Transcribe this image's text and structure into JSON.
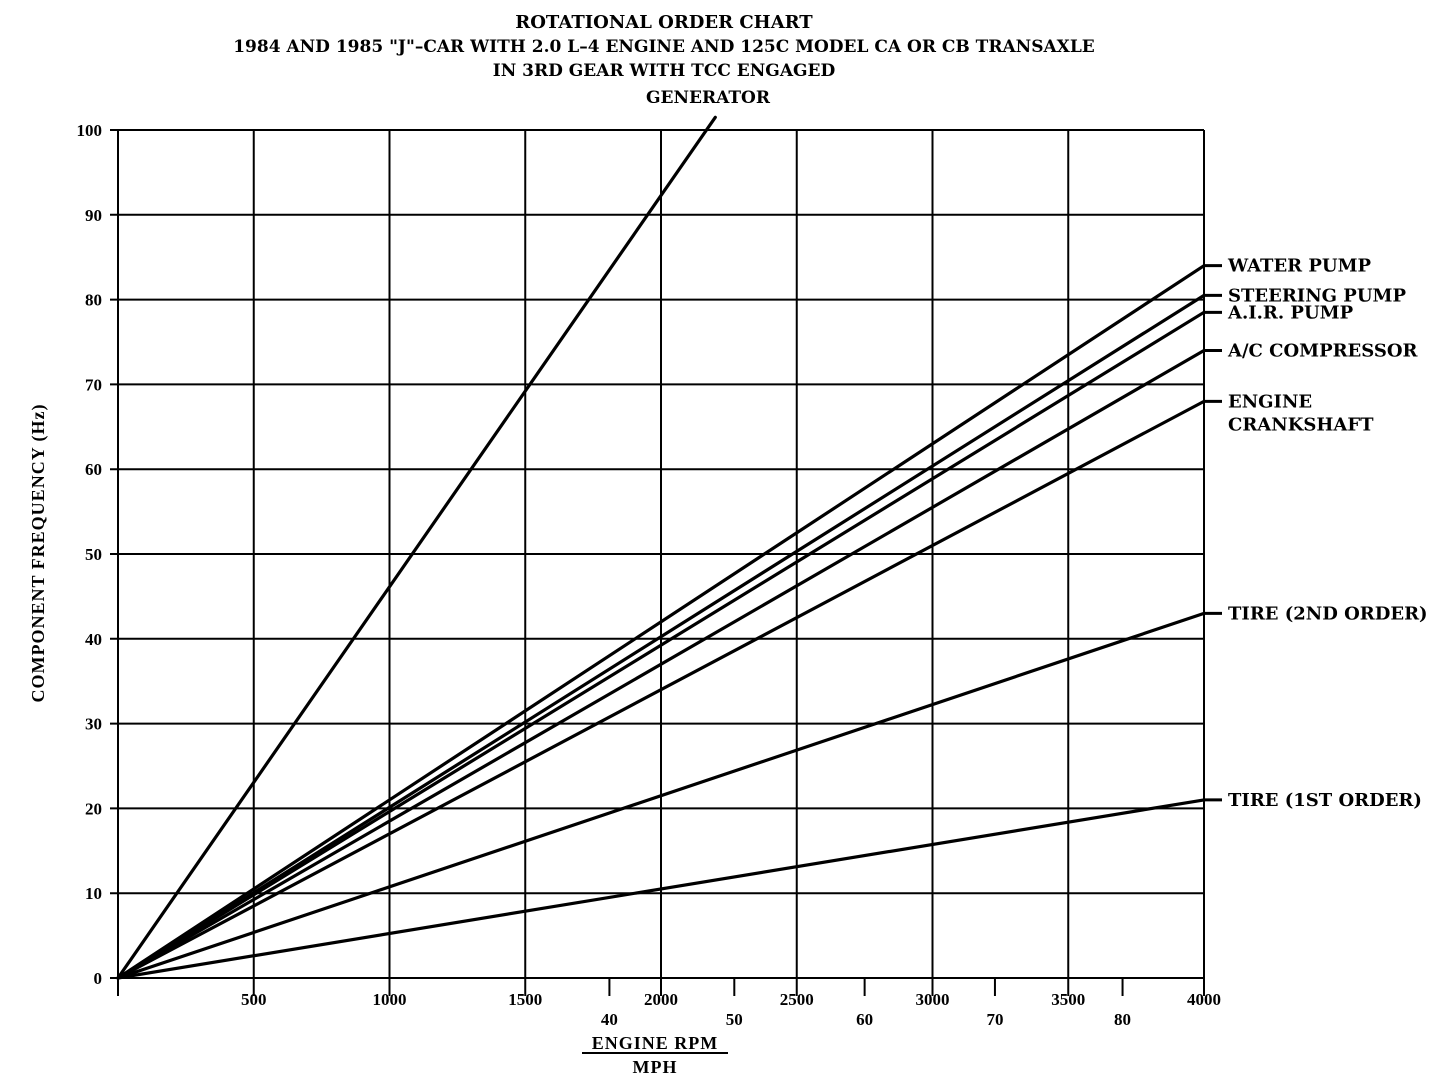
{
  "chart_data": {
    "type": "line",
    "title": "ROTATIONAL ORDER CHART",
    "subtitle_lines": [
      "1984 AND 1985 \"J\"–CAR WITH 2.0 L–4 ENGINE AND 125C MODEL CA OR CB TRANSAXLE",
      "IN 3RD GEAR WITH TCC ENGAGED"
    ],
    "ylabel": "COMPONENT FREQUENCY (Hz)",
    "xlabel": "ENGINE RPM",
    "xlabel2": "MPH",
    "xlim": [
      0,
      4000
    ],
    "ylim": [
      0,
      100
    ],
    "grid": true,
    "x_ticks": [
      500,
      1000,
      1500,
      2000,
      2500,
      3000,
      3500,
      4000
    ],
    "x_tick_labels": [
      "500",
      "1000",
      "1500",
      "2000",
      "2500",
      "3000",
      "3500",
      "4000"
    ],
    "y_ticks": [
      0,
      10,
      20,
      30,
      40,
      50,
      60,
      70,
      80,
      90,
      100
    ],
    "y_tick_labels": [
      "0",
      "10",
      "20",
      "30",
      "40",
      "50",
      "60",
      "70",
      "80",
      "90",
      "100"
    ],
    "mph_ticks": [
      {
        "rpm": 1810,
        "label": "40"
      },
      {
        "rpm": 2270,
        "label": "50"
      },
      {
        "rpm": 2750,
        "label": "60"
      },
      {
        "rpm": 3230,
        "label": "70"
      },
      {
        "rpm": 3700,
        "label": "80"
      }
    ],
    "series": [
      {
        "name": "GENERATOR",
        "x": [
          0,
          2200
        ],
        "y": [
          0,
          101.5
        ]
      },
      {
        "name": "WATER PUMP",
        "x": [
          0,
          4000
        ],
        "y": [
          0,
          84
        ]
      },
      {
        "name": "STEERING PUMP",
        "x": [
          0,
          4000
        ],
        "y": [
          0,
          80.5
        ]
      },
      {
        "name": "A.I.R. PUMP",
        "x": [
          0,
          4000
        ],
        "y": [
          0,
          78.5
        ]
      },
      {
        "name": "A/C COMPRESSOR",
        "x": [
          0,
          4000
        ],
        "y": [
          0,
          74
        ]
      },
      {
        "name": "ENGINE CRANKSHAFT",
        "x": [
          0,
          4000
        ],
        "y": [
          0,
          68
        ]
      },
      {
        "name": "TIRE (2ND ORDER)",
        "x": [
          0,
          4000
        ],
        "y": [
          0,
          43
        ]
      },
      {
        "name": "TIRE (1ST ORDER)",
        "x": [
          0,
          4000
        ],
        "y": [
          0,
          21
        ]
      }
    ],
    "legend": [
      {
        "series": "WATER PUMP",
        "lines": [
          "WATER PUMP"
        ]
      },
      {
        "series": "STEERING PUMP",
        "lines": [
          "STEERING PUMP"
        ]
      },
      {
        "series": "A.I.R. PUMP",
        "lines": [
          "A.I.R. PUMP"
        ]
      },
      {
        "series": "A/C COMPRESSOR",
        "lines": [
          "A/C COMPRESSOR"
        ]
      },
      {
        "series": "ENGINE CRANKSHAFT",
        "lines": [
          "ENGINE",
          "CRANKSHAFT"
        ]
      },
      {
        "series": "TIRE (2ND ORDER)",
        "lines": [
          "TIRE (2ND ORDER)"
        ]
      },
      {
        "series": "TIRE (1ST ORDER)",
        "lines": [
          "TIRE (1ST ORDER)"
        ]
      }
    ],
    "top_label": "GENERATOR"
  }
}
